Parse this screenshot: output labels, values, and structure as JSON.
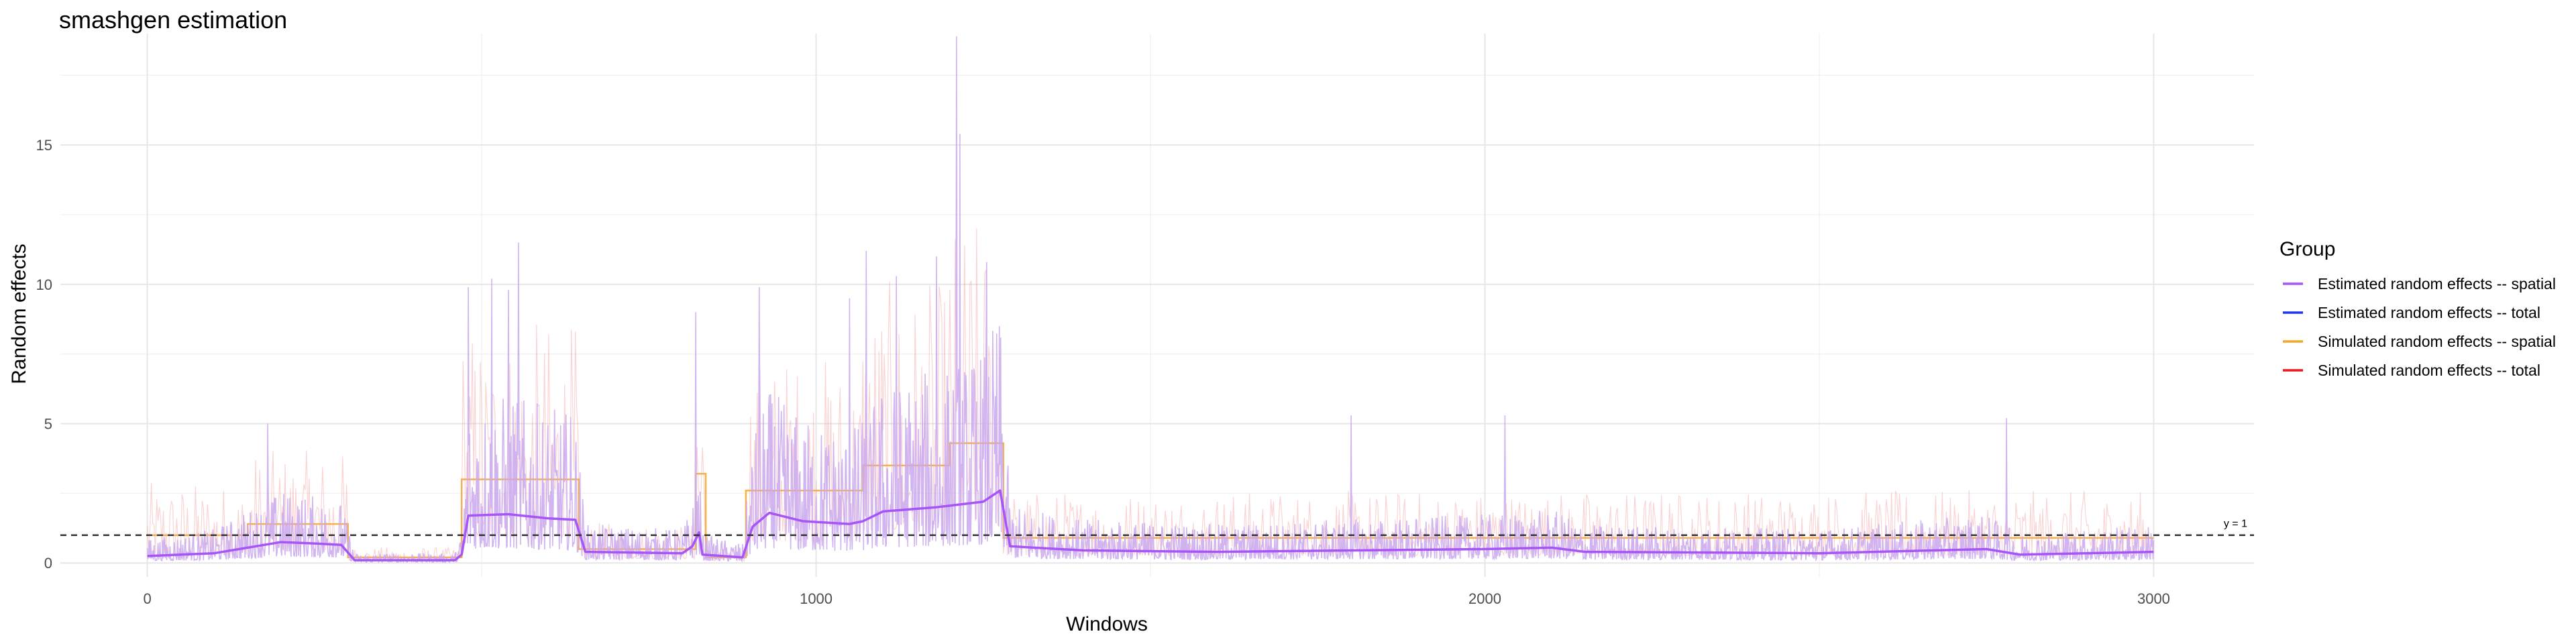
{
  "chart_data": {
    "type": "line",
    "title": "smashgen estimation",
    "xlabel": "Windows",
    "ylabel": "Random effects",
    "xlim": [
      -130,
      3150
    ],
    "ylim": [
      -0.5,
      19.0
    ],
    "x_ticks": [
      0,
      1000,
      2000,
      3000
    ],
    "y_ticks": [
      0,
      5,
      10,
      15
    ],
    "grid": true,
    "n_windows": 3000,
    "reference_line": {
      "y": 1,
      "label": "y = 1",
      "style": "dashed"
    },
    "legend": {
      "title": "Group",
      "position": "right",
      "entries": [
        {
          "label": "Estimated random effects -- spatial",
          "color": "#a855f7"
        },
        {
          "label": "Estimated random effects -- total",
          "color": "#2233ee"
        },
        {
          "label": "Simulated random effects -- spatial",
          "color": "#f5a623"
        },
        {
          "label": "Simulated random effects -- total",
          "color": "#e8141e"
        }
      ]
    },
    "series": [
      {
        "name": "Simulated random effects -- spatial",
        "color": "#f5a623",
        "segments": [
          {
            "x0": 0,
            "x1": 150,
            "y": 1.0
          },
          {
            "x0": 150,
            "x1": 300,
            "y": 1.4
          },
          {
            "x0": 300,
            "x1": 470,
            "y": 0.2
          },
          {
            "x0": 470,
            "x1": 645,
            "y": 3.0
          },
          {
            "x0": 645,
            "x1": 820,
            "y": 0.5
          },
          {
            "x0": 820,
            "x1": 835,
            "y": 3.2
          },
          {
            "x0": 835,
            "x1": 895,
            "y": 0.2
          },
          {
            "x0": 895,
            "x1": 1070,
            "y": 2.6
          },
          {
            "x0": 1070,
            "x1": 1200,
            "y": 3.5
          },
          {
            "x0": 1200,
            "x1": 1280,
            "y": 4.3
          },
          {
            "x0": 1280,
            "x1": 3000,
            "y": 0.9
          }
        ]
      },
      {
        "name": "Estimated random effects -- spatial",
        "color": "#a855f7",
        "smooth": [
          [
            0,
            0.25
          ],
          [
            100,
            0.35
          ],
          [
            150,
            0.55
          ],
          [
            200,
            0.75
          ],
          [
            250,
            0.7
          ],
          [
            290,
            0.65
          ],
          [
            310,
            0.1
          ],
          [
            460,
            0.1
          ],
          [
            470,
            0.3
          ],
          [
            480,
            1.7
          ],
          [
            540,
            1.75
          ],
          [
            600,
            1.6
          ],
          [
            640,
            1.55
          ],
          [
            655,
            0.4
          ],
          [
            800,
            0.35
          ],
          [
            815,
            0.6
          ],
          [
            825,
            1.1
          ],
          [
            830,
            0.3
          ],
          [
            890,
            0.2
          ],
          [
            905,
            1.3
          ],
          [
            930,
            1.8
          ],
          [
            980,
            1.5
          ],
          [
            1050,
            1.4
          ],
          [
            1070,
            1.5
          ],
          [
            1100,
            1.85
          ],
          [
            1180,
            2.0
          ],
          [
            1250,
            2.2
          ],
          [
            1275,
            2.6
          ],
          [
            1290,
            0.6
          ],
          [
            1400,
            0.45
          ],
          [
            1600,
            0.4
          ],
          [
            1800,
            0.45
          ],
          [
            2000,
            0.5
          ],
          [
            2100,
            0.55
          ],
          [
            2150,
            0.4
          ],
          [
            2500,
            0.35
          ],
          [
            2750,
            0.5
          ],
          [
            2800,
            0.3
          ],
          [
            3000,
            0.4
          ]
        ],
        "peaks": [
          [
            480,
            9.9
          ],
          [
            515,
            10.2
          ],
          [
            540,
            9.8
          ],
          [
            555,
            11.5
          ],
          [
            820,
            9.0
          ],
          [
            915,
            9.9
          ],
          [
            1050,
            9.5
          ],
          [
            1075,
            11.2
          ],
          [
            1120,
            10.3
          ],
          [
            1180,
            11.0
          ],
          [
            1210,
            18.9
          ],
          [
            1215,
            15.4
          ],
          [
            1255,
            10.8
          ],
          [
            180,
            5.0
          ],
          [
            1800,
            5.3
          ],
          [
            2030,
            5.3
          ],
          [
            2780,
            5.2
          ]
        ]
      }
    ]
  }
}
